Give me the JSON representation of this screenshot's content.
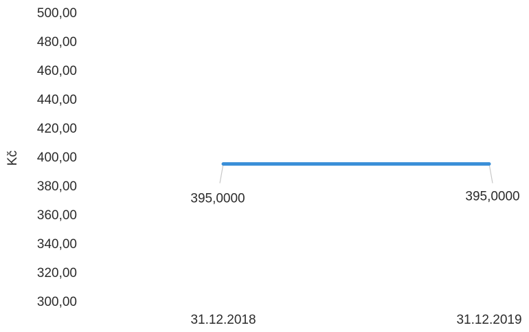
{
  "chart_data": {
    "type": "line",
    "title": "",
    "xlabel": "",
    "ylabel": "Kč",
    "categories": [
      "31.12.2018",
      "31.12.2019"
    ],
    "series": [
      {
        "values": [
          395.0,
          395.0
        ],
        "data_labels": [
          "395,0000",
          "395,0000"
        ],
        "color": "#3a8fd8"
      }
    ],
    "y_ticks": [
      "500,00",
      "480,00",
      "460,00",
      "440,00",
      "420,00",
      "400,00",
      "380,00",
      "360,00",
      "340,00",
      "320,00",
      "300,00"
    ],
    "ylim": [
      300,
      500
    ],
    "grid": false,
    "legend": "none"
  }
}
